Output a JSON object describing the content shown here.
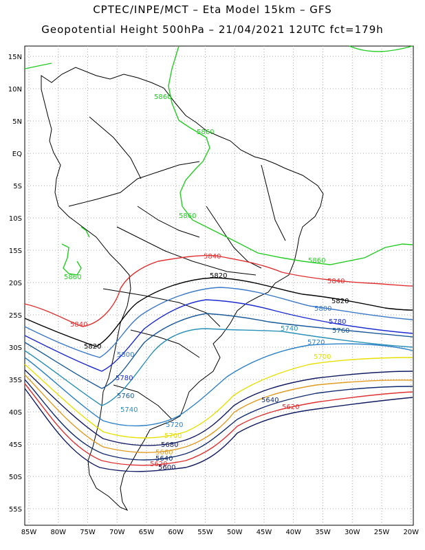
{
  "title_line1": "CPTEC/INPE/MCT –  Eta Model 15km – GFS",
  "title_line2": "Geopotential Height 500hPa – 21/04/2021 12UTC fct=179h",
  "lat_ticks": [
    "15N",
    "10N",
    "5N",
    "EQ",
    "5S",
    "10S",
    "15S",
    "20S",
    "25S",
    "30S",
    "35S",
    "40S",
    "45S",
    "50S",
    "55S"
  ],
  "lon_ticks": [
    "85W",
    "80W",
    "75W",
    "70W",
    "65W",
    "60W",
    "55W",
    "50W",
    "45W",
    "40W",
    "35W",
    "30W",
    "25W",
    "20W"
  ],
  "contour_labels": [
    {
      "text": "5860",
      "color": "#22cc22"
    },
    {
      "text": "5860",
      "color": "#22cc22"
    },
    {
      "text": "5860",
      "color": "#22cc22"
    },
    {
      "text": "5860",
      "color": "#22cc22"
    },
    {
      "text": "5860",
      "color": "#22cc22"
    },
    {
      "text": "5840",
      "color": "#e03030"
    },
    {
      "text": "5840",
      "color": "#e03030"
    },
    {
      "text": "5840",
      "color": "#e03030"
    },
    {
      "text": "5820",
      "color": "#000000"
    },
    {
      "text": "5820",
      "color": "#000000"
    },
    {
      "text": "5820",
      "color": "#000000"
    },
    {
      "text": "5800",
      "color": "#3a78c8"
    },
    {
      "text": "5800",
      "color": "#3a78c8"
    },
    {
      "text": "5780",
      "color": "#1a2ad0"
    },
    {
      "text": "5780",
      "color": "#1a2ad0"
    },
    {
      "text": "5760",
      "color": "#1a5a9a"
    },
    {
      "text": "5760",
      "color": "#1a5a9a"
    },
    {
      "text": "5740",
      "color": "#2a90b8"
    },
    {
      "text": "5740",
      "color": "#2a90b8"
    },
    {
      "text": "5720",
      "color": "#2a80c8"
    },
    {
      "text": "5720",
      "color": "#2a80c8"
    },
    {
      "text": "5700",
      "color": "#e8e000"
    },
    {
      "text": "5700",
      "color": "#e8e000"
    },
    {
      "text": "5680",
      "color": "#101a60"
    },
    {
      "text": "5660",
      "color": "#e09a20"
    },
    {
      "text": "5640",
      "color": "#102a70"
    },
    {
      "text": "5640",
      "color": "#102a70"
    },
    {
      "text": "5620",
      "color": "#e03030"
    },
    {
      "text": "5620",
      "color": "#e03030"
    },
    {
      "text": "5600",
      "color": "#101a60"
    }
  ],
  "colors": {
    "h5860": "#22cc22",
    "h5840": "#e03030",
    "h5820": "#000000",
    "h5800": "#3a78c8",
    "h5780": "#1a2ad0",
    "h5760": "#1a5a9a",
    "h5740": "#2a90b8",
    "h5720": "#2a80c8",
    "h5700": "#e8e000",
    "h5680": "#101a60",
    "h5660": "#e09a20",
    "h5640": "#102a70",
    "h5620": "#e03030",
    "h5600": "#101a60",
    "coast": "#000000",
    "grid": "#aaaaaa"
  }
}
